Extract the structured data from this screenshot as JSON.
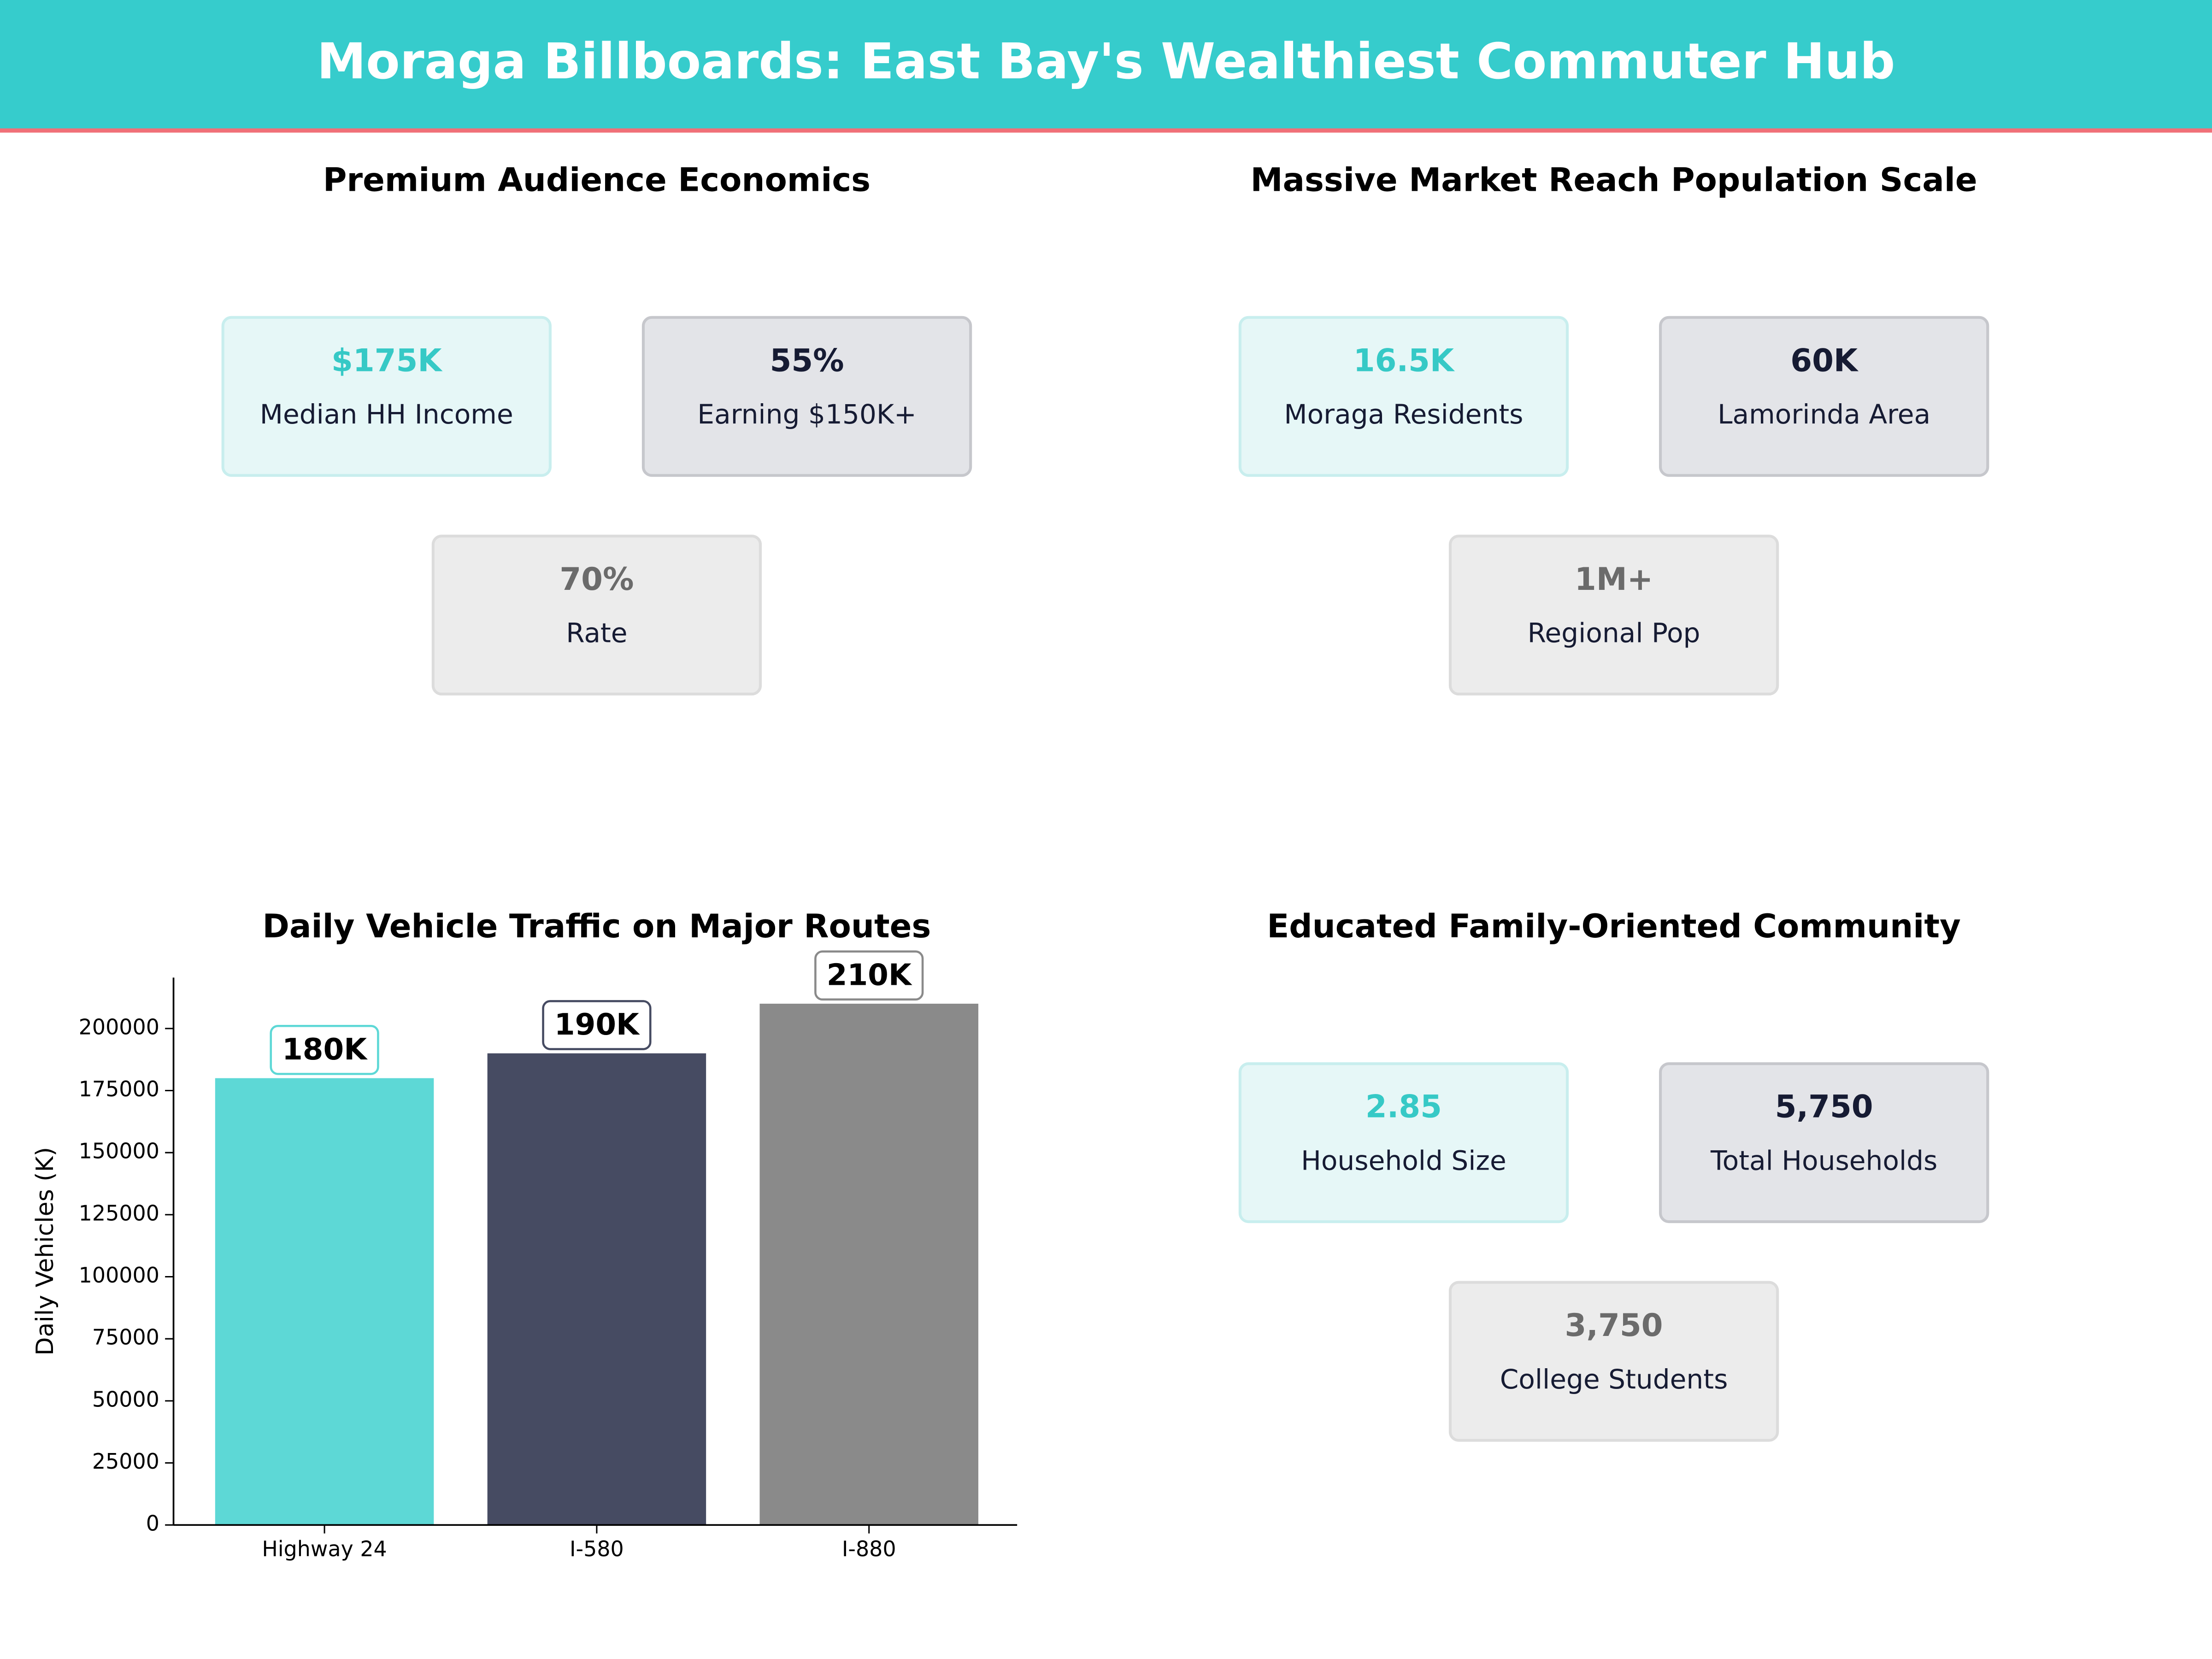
{
  "header": {
    "title": "Moraga Billboards: East Bay's Wealthiest Commuter Hub"
  },
  "panels": [
    {
      "title": "Premium Audience Economics",
      "cards": [
        {
          "value": "$175K",
          "label": "Median HH Income"
        },
        {
          "value": "55%",
          "label": "Earning $150K+"
        },
        {
          "value": "70%",
          "label": "Rate"
        }
      ]
    },
    {
      "title": "Massive Market Reach Population Scale",
      "cards": [
        {
          "value": "16.5K",
          "label": "Moraga Residents"
        },
        {
          "value": "60K",
          "label": "Lamorinda Area"
        },
        {
          "value": "1M+",
          "label": "Regional Pop"
        }
      ]
    },
    {
      "title": "Educated Family-Oriented Community",
      "cards": [
        {
          "value": "2.85",
          "label": "Household Size"
        },
        {
          "value": "5,750",
          "label": "Total Households"
        },
        {
          "value": "3,750",
          "label": "College Students"
        }
      ]
    }
  ],
  "chart_data": {
    "type": "bar",
    "title": "Daily Vehicle Traffic on Major Routes",
    "ylabel": "Daily Vehicles (K)",
    "categories": [
      "Highway 24",
      "I-580",
      "I-880"
    ],
    "values": [
      180000,
      190000,
      210000
    ],
    "value_labels": [
      "180K",
      "190K",
      "210K"
    ],
    "colors": [
      "#5dd8d6",
      "#464b62",
      "#8a8a8a"
    ],
    "ylim": [
      0,
      220500
    ],
    "yticks": [
      0,
      25000,
      50000,
      75000,
      100000,
      125000,
      150000,
      175000,
      200000
    ],
    "grid": false
  }
}
